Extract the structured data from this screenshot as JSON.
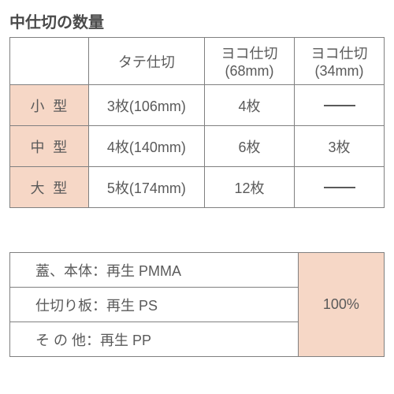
{
  "title": "中仕切の数量",
  "table1": {
    "headers": {
      "blank": "",
      "tate": "タテ仕切",
      "yoko68_l1": "ヨコ仕切",
      "yoko68_l2": "(68mm)",
      "yoko34_l1": "ヨコ仕切",
      "yoko34_l2": "(34mm)"
    },
    "rows": [
      {
        "size": "小型",
        "tate": "3枚(106mm)",
        "y68": "4枚",
        "y34": "—"
      },
      {
        "size": "中型",
        "tate": "4枚(140mm)",
        "y68": "6枚",
        "y34": "3枚"
      },
      {
        "size": "大型",
        "tate": "5枚(174mm)",
        "y68": "12枚",
        "y34": "—"
      }
    ]
  },
  "table2": {
    "rows": [
      "蓋、本体：再生 PMMA",
      "仕切り板：再生 PS",
      "そ の 他：再生 PP"
    ],
    "percent": "100%"
  },
  "colors": {
    "header_bg": "#f6d7c6",
    "border": "#808080",
    "text": "#5a5a5a",
    "bg": "#ffffff"
  }
}
